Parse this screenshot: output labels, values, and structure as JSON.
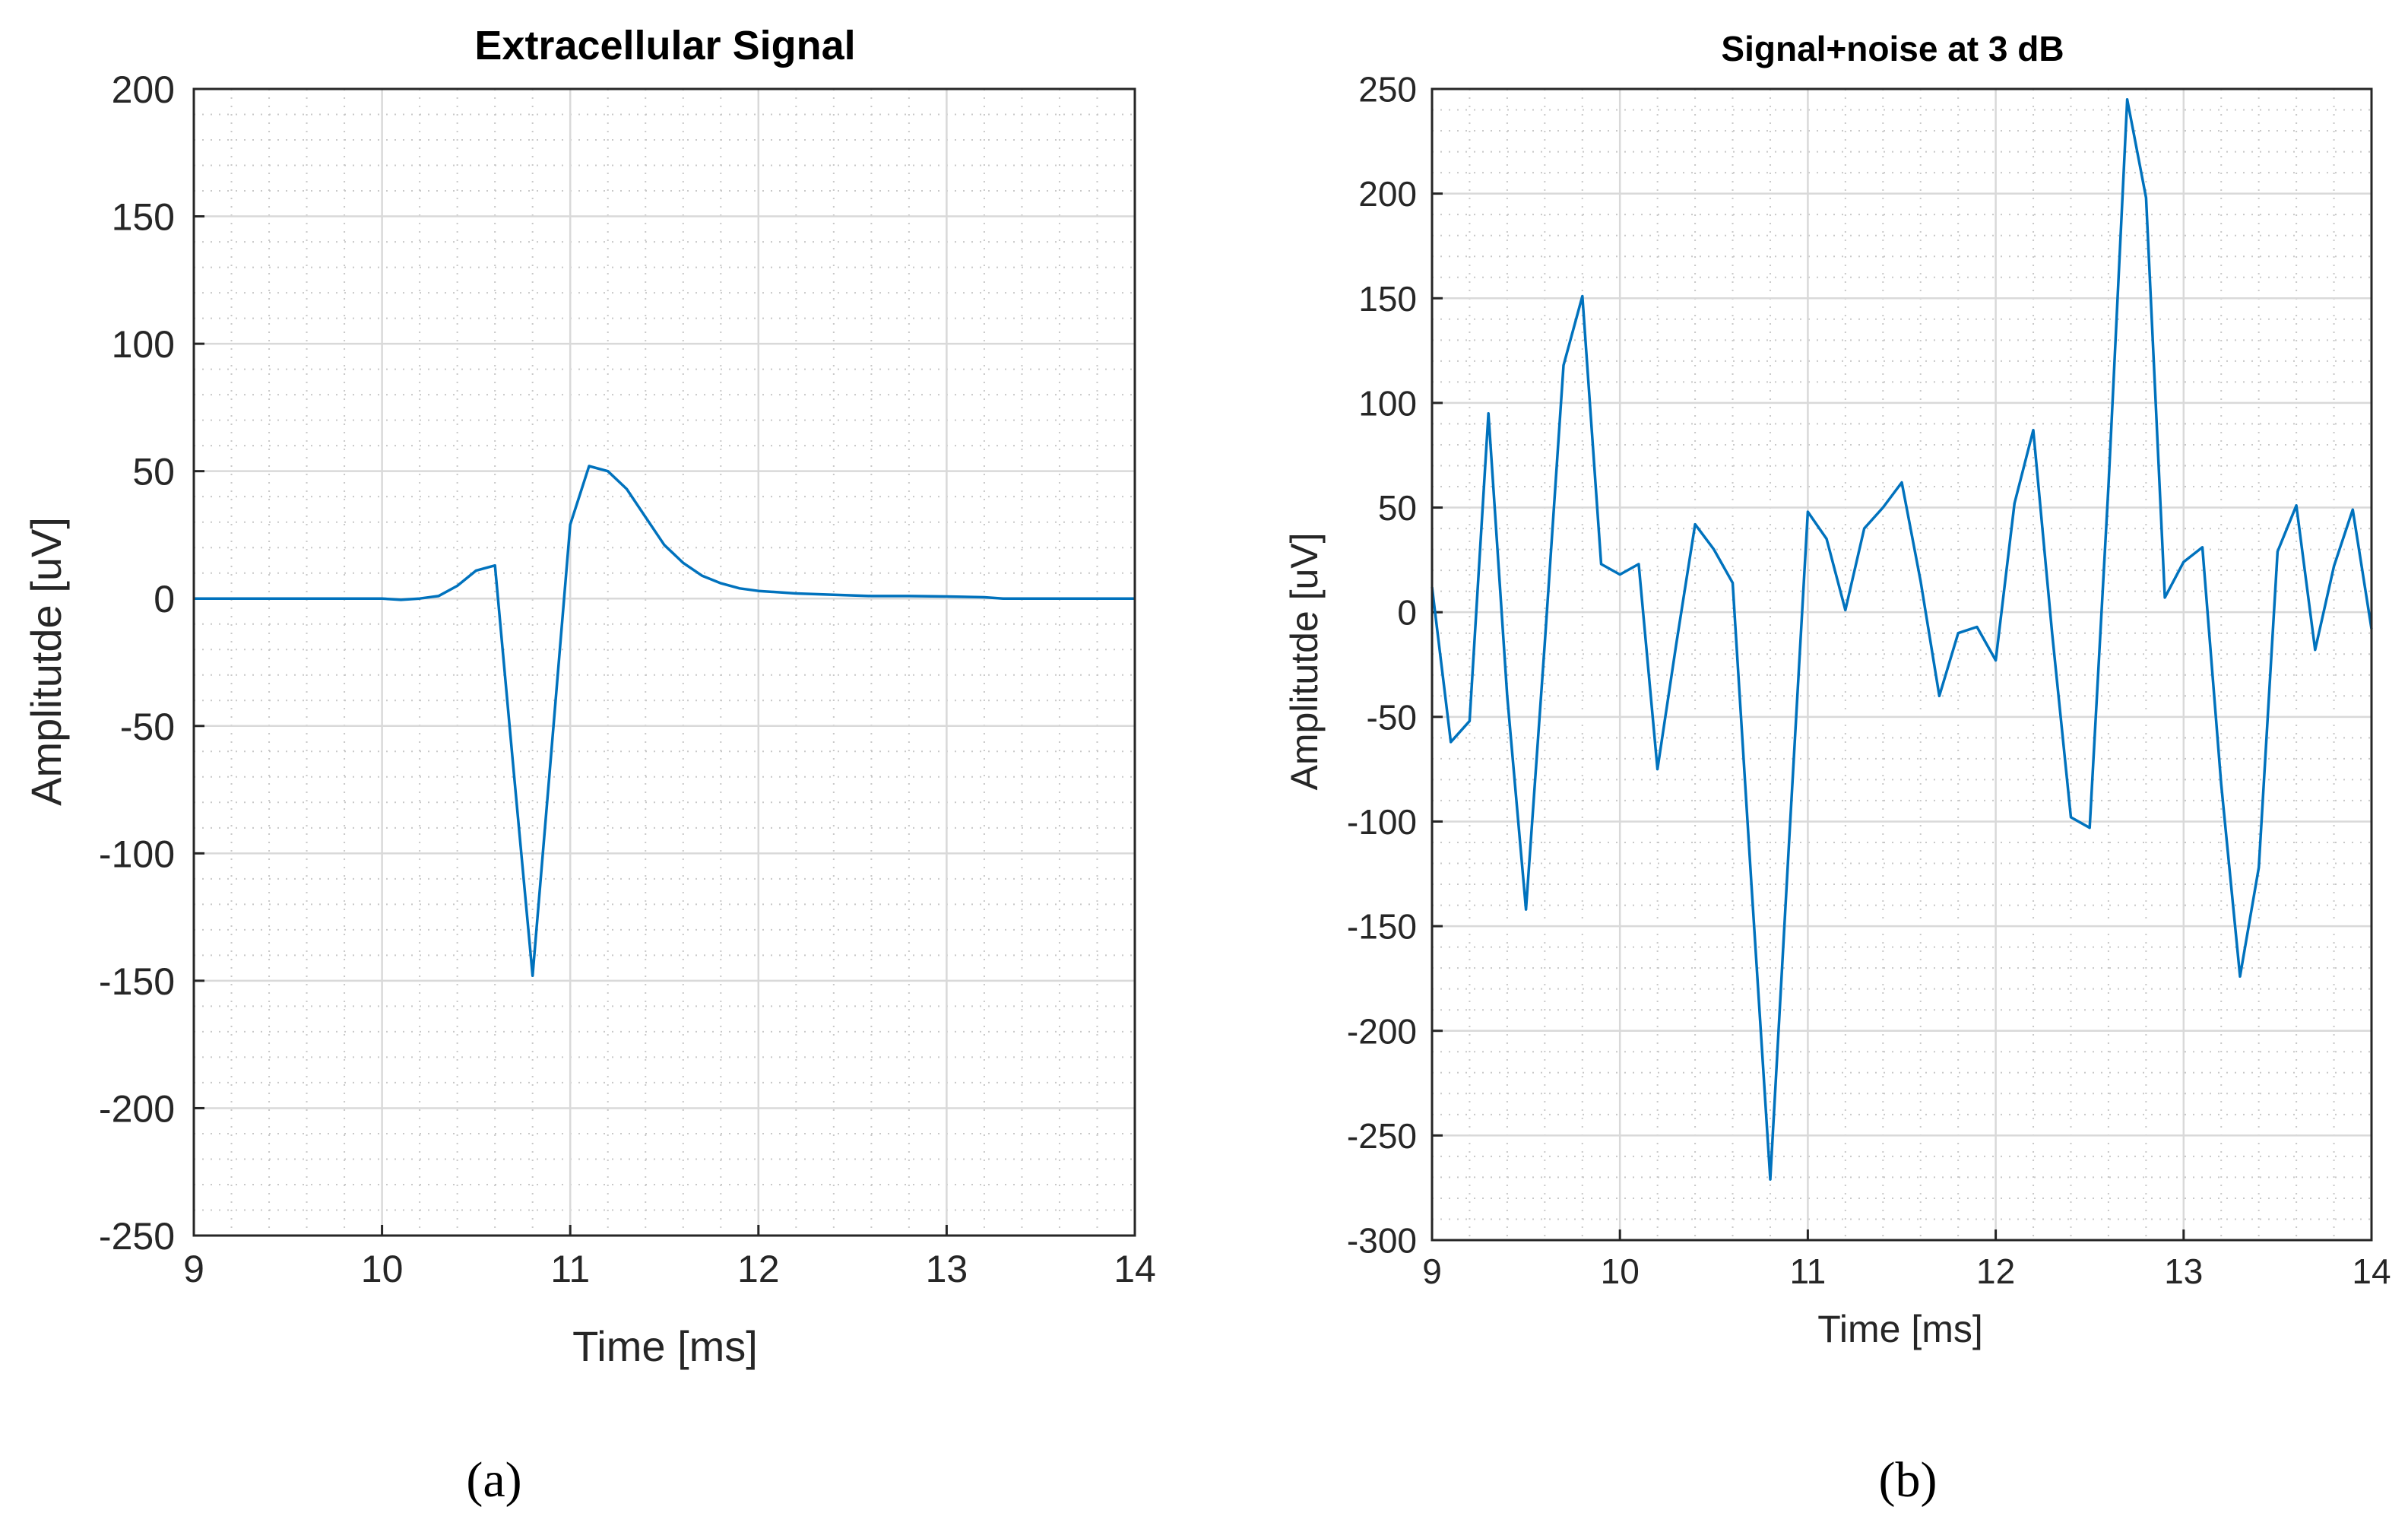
{
  "colors": {
    "line": "#0072BD",
    "axis": "#262626",
    "major_grid": "#d9d9d9",
    "minor_grid": "#c8c8c8"
  },
  "captions": {
    "a": "(a)",
    "b": "(b)"
  },
  "chart_data": [
    {
      "type": "line",
      "title": "Extracellular Signal",
      "xlabel": "Time [ms]",
      "ylabel": "Amplitutde [uV]",
      "xlim": [
        9,
        14
      ],
      "ylim": [
        -250,
        200
      ],
      "xticks": [
        9,
        10,
        11,
        12,
        13,
        14
      ],
      "yticks": [
        -250,
        -200,
        -150,
        -100,
        -50,
        0,
        50,
        100,
        150,
        200
      ],
      "grid": true,
      "minor_grid": true,
      "series": [
        {
          "name": "Extracellular Signal",
          "x": [
            9.0,
            9.5,
            10.0,
            10.1,
            10.2,
            10.3,
            10.4,
            10.5,
            10.6,
            10.7,
            10.8,
            10.9,
            11.0,
            11.1,
            11.2,
            11.3,
            11.4,
            11.5,
            11.6,
            11.7,
            11.8,
            11.9,
            12.0,
            12.2,
            12.4,
            12.6,
            12.8,
            13.0,
            13.2,
            13.3,
            13.6,
            14.0
          ],
          "y": [
            0,
            0,
            0,
            -0.5,
            0,
            1,
            5,
            11,
            13,
            -68,
            -148,
            -60,
            29,
            52,
            50,
            43,
            32,
            21,
            14,
            9,
            6,
            4,
            3,
            2,
            1.5,
            1,
            1,
            0.8,
            0.5,
            0,
            0,
            0
          ]
        }
      ]
    },
    {
      "type": "line",
      "title": "Signal+noise at 3 dB",
      "xlabel": "Time [ms]",
      "ylabel": "Amplitutde [uV]",
      "xlim": [
        9,
        14
      ],
      "ylim": [
        -300,
        250
      ],
      "xticks": [
        9,
        10,
        11,
        12,
        13,
        14
      ],
      "yticks": [
        -300,
        -250,
        -200,
        -150,
        -100,
        -50,
        0,
        50,
        100,
        150,
        200,
        250
      ],
      "grid": true,
      "minor_grid": true,
      "series": [
        {
          "name": "Signal+noise",
          "x": [
            9.0,
            9.1,
            9.2,
            9.3,
            9.4,
            9.5,
            9.6,
            9.7,
            9.8,
            9.9,
            10.0,
            10.1,
            10.2,
            10.3,
            10.4,
            10.5,
            10.6,
            10.7,
            10.8,
            10.9,
            11.0,
            11.1,
            11.2,
            11.3,
            11.4,
            11.5,
            11.6,
            11.7,
            11.8,
            11.9,
            12.0,
            12.1,
            12.2,
            12.3,
            12.4,
            12.5,
            12.6,
            12.7,
            12.8,
            12.9,
            13.0,
            13.1,
            13.2,
            13.3,
            13.4,
            13.5,
            13.6,
            13.7,
            13.8,
            13.9,
            14.0
          ],
          "y": [
            12,
            -62,
            -52,
            95,
            -40,
            -142,
            -15,
            118,
            151,
            23,
            18,
            23,
            -75,
            -15,
            42,
            30,
            14,
            -130,
            -271,
            -110,
            48,
            35,
            1,
            40,
            50,
            62,
            15,
            -40,
            -10,
            -7,
            -23,
            52,
            87,
            -10,
            -98,
            -103,
            60,
            245,
            198,
            7,
            24,
            31,
            -82,
            -174,
            -122,
            29,
            51,
            -18,
            22,
            49,
            -8
          ]
        }
      ]
    }
  ]
}
